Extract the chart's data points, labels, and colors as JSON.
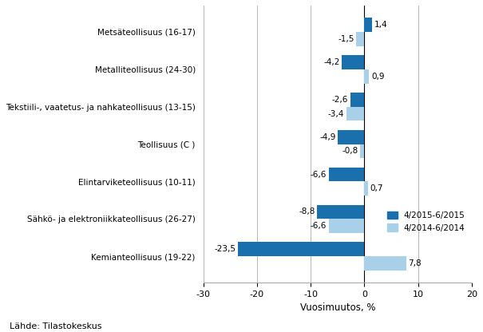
{
  "categories": [
    "Kemianteollisuus (19-22)",
    "Sähkö- ja elektroniikkateollisuus (26-27)",
    "Elintarviketeollisuus (10-11)",
    "Teollisuus (C )",
    "Tekstiili-, vaatetus- ja nahkateollisuus (13-15)",
    "Metalliteollisuus (24-30)",
    "Metsäteollisuus (16-17)"
  ],
  "series1_values": [
    -23.5,
    -8.8,
    -6.6,
    -4.9,
    -2.6,
    -4.2,
    1.4
  ],
  "series2_values": [
    7.8,
    -6.6,
    0.7,
    -0.8,
    -3.4,
    0.9,
    -1.5
  ],
  "series1_label": "4/2015-6/2015",
  "series2_label": "4/2014-6/2014",
  "series1_color": "#1a6fad",
  "series2_color": "#a8d0e8",
  "xlabel": "Vuosimuutos, %",
  "xlim": [
    -30,
    20
  ],
  "xticks": [
    -30,
    -20,
    -10,
    0,
    10,
    20
  ],
  "source": "Lähde: Tilastokeskus",
  "bar_height": 0.38
}
